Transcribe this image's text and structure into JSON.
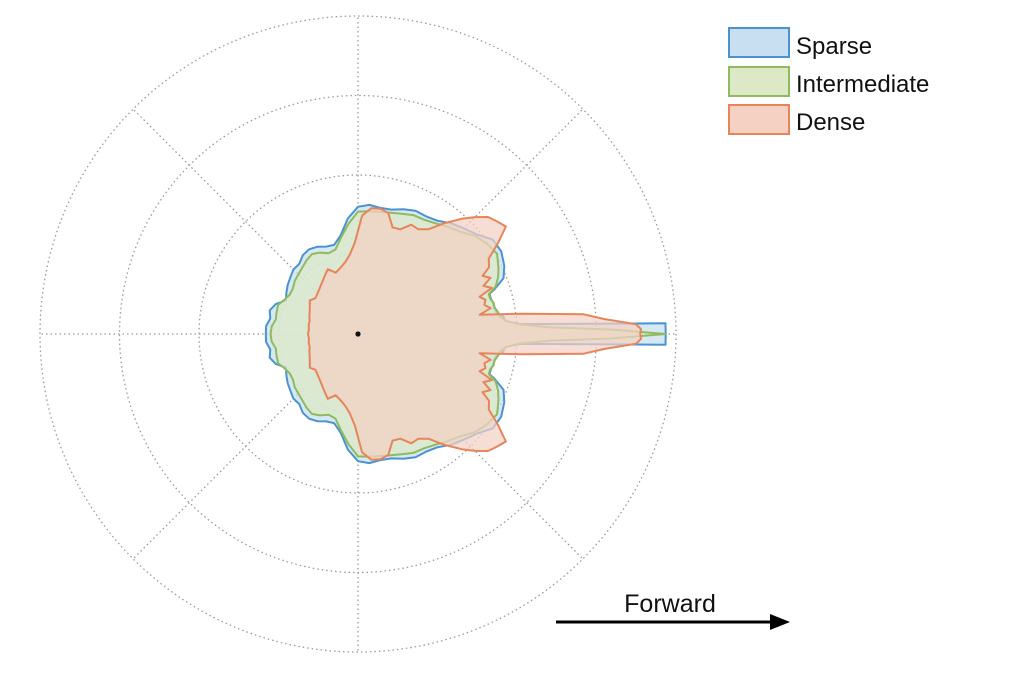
{
  "chart_data": {
    "type": "polar-area",
    "title": "",
    "series": [
      {
        "name": "Sparse",
        "color": "#4b93cf",
        "fill": "#c7dff1",
        "radius_by_angle_deg": [
          [
            0,
            3.87
          ],
          [
            2,
            3.87
          ],
          [
            3.5,
            2.05
          ],
          [
            5,
            1.86
          ],
          [
            7,
            1.84
          ],
          [
            9,
            1.76
          ],
          [
            11,
            1.74
          ],
          [
            13,
            1.74
          ],
          [
            15,
            1.73
          ],
          [
            17,
            1.73
          ],
          [
            18,
            1.8
          ],
          [
            21,
            1.96
          ],
          [
            25,
            2.03
          ],
          [
            30,
            2.08
          ],
          [
            35,
            2.07
          ],
          [
            40,
            1.95
          ],
          [
            45,
            1.88
          ],
          [
            50,
            1.82
          ],
          [
            55,
            1.74
          ],
          [
            60,
            1.71
          ],
          [
            65,
            1.71
          ],
          [
            70,
            1.67
          ],
          [
            75,
            1.62
          ],
          [
            80,
            1.61
          ],
          [
            85,
            1.63
          ],
          [
            90,
            1.6
          ],
          [
            95,
            1.46
          ],
          [
            100,
            1.26
          ],
          [
            105,
            1.16
          ],
          [
            110,
            1.17
          ],
          [
            115,
            1.21
          ],
          [
            120,
            1.23
          ],
          [
            125,
            1.21
          ],
          [
            130,
            1.15
          ],
          [
            135,
            1.15
          ],
          [
            140,
            1.11
          ],
          [
            145,
            1.08
          ],
          [
            150,
            1.04
          ],
          [
            155,
            1.0
          ],
          [
            160,
            1.1
          ],
          [
            165,
            1.15
          ],
          [
            170,
            1.12
          ],
          [
            175,
            1.16
          ],
          [
            180,
            1.16
          ]
        ]
      },
      {
        "name": "Intermediate",
        "color": "#8fba5d",
        "fill": "#dde9c6",
        "radius_by_angle_deg": [
          [
            0,
            3.87
          ],
          [
            1,
            3.2
          ],
          [
            2,
            2.4
          ],
          [
            3.5,
            2.02
          ],
          [
            5,
            1.88
          ],
          [
            7,
            1.8
          ],
          [
            9,
            1.78
          ],
          [
            11,
            1.75
          ],
          [
            13,
            1.75
          ],
          [
            15,
            1.72
          ],
          [
            17,
            1.72
          ],
          [
            19,
            1.83
          ],
          [
            22,
            1.9
          ],
          [
            25,
            1.95
          ],
          [
            30,
            2.02
          ],
          [
            35,
            1.98
          ],
          [
            40,
            1.92
          ],
          [
            45,
            1.82
          ],
          [
            50,
            1.76
          ],
          [
            55,
            1.7
          ],
          [
            60,
            1.66
          ],
          [
            65,
            1.65
          ],
          [
            70,
            1.61
          ],
          [
            75,
            1.58
          ],
          [
            80,
            1.56
          ],
          [
            85,
            1.55
          ],
          [
            90,
            1.54
          ],
          [
            95,
            1.39
          ],
          [
            100,
            1.23
          ],
          [
            105,
            1.1
          ],
          [
            110,
            1.08
          ],
          [
            115,
            1.13
          ],
          [
            120,
            1.16
          ],
          [
            125,
            1.13
          ],
          [
            130,
            1.09
          ],
          [
            135,
            1.06
          ],
          [
            140,
            1.04
          ],
          [
            145,
            1.0
          ],
          [
            150,
            0.99
          ],
          [
            155,
            1.02
          ],
          [
            160,
            1.07
          ],
          [
            165,
            1.06
          ],
          [
            170,
            1.05
          ],
          [
            175,
            1.09
          ],
          [
            180,
            1.1
          ]
        ]
      },
      {
        "name": "Dense",
        "color": "#e8845a",
        "fill": "#f4d1c3",
        "radius_by_angle_deg": [
          [
            0,
            3.55
          ],
          [
            1,
            3.56
          ],
          [
            2,
            3.5
          ],
          [
            3.5,
            3.1
          ],
          [
            5,
            2.85
          ],
          [
            7,
            2.1
          ],
          [
            9,
            1.55
          ],
          [
            11,
            1.7
          ],
          [
            13,
            1.63
          ],
          [
            15,
            1.66
          ],
          [
            17,
            1.6
          ],
          [
            19,
            1.78
          ],
          [
            21,
            1.69
          ],
          [
            23,
            1.81
          ],
          [
            25,
            1.73
          ],
          [
            27,
            1.85
          ],
          [
            30,
            1.9
          ],
          [
            33,
            2.1
          ],
          [
            36,
            2.3
          ],
          [
            39,
            2.25
          ],
          [
            42,
            2.2
          ],
          [
            45,
            2.08
          ],
          [
            48,
            1.95
          ],
          [
            52,
            1.77
          ],
          [
            56,
            1.59
          ],
          [
            60,
            1.52
          ],
          [
            64,
            1.53
          ],
          [
            68,
            1.42
          ],
          [
            72,
            1.41
          ],
          [
            76,
            1.57
          ],
          [
            80,
            1.6
          ],
          [
            84,
            1.59
          ],
          [
            88,
            1.49
          ],
          [
            92,
            1.15
          ],
          [
            96,
            1.0
          ],
          [
            100,
            0.92
          ],
          [
            105,
            0.86
          ],
          [
            110,
            0.82
          ],
          [
            115,
            0.9
          ],
          [
            120,
            0.84
          ],
          [
            125,
            0.79
          ],
          [
            130,
            0.75
          ],
          [
            135,
            0.72
          ],
          [
            140,
            0.7
          ],
          [
            145,
            0.74
          ],
          [
            150,
            0.7
          ],
          [
            155,
            0.67
          ],
          [
            160,
            0.65
          ],
          [
            165,
            0.63
          ],
          [
            170,
            0.63
          ],
          [
            175,
            0.62
          ],
          [
            180,
            0.63
          ]
        ]
      }
    ],
    "r_grid": [
      1,
      2,
      3,
      4
    ],
    "angle_grid_deg": [
      0,
      45,
      90,
      135,
      180,
      225,
      270,
      315
    ],
    "grid": true,
    "legend_position": "top-right",
    "annotation": {
      "text": "Forward",
      "arrow": "right"
    }
  }
}
